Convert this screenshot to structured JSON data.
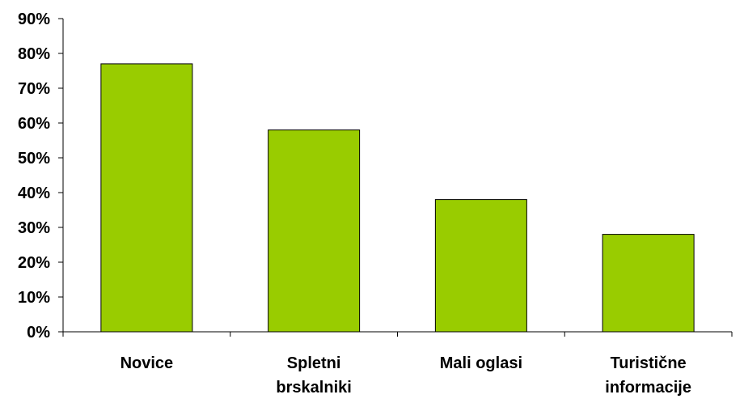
{
  "chart_data": {
    "type": "bar",
    "categories": [
      [
        "Novice"
      ],
      [
        "Spletni",
        "brskalniki"
      ],
      [
        "Mali oglasi"
      ],
      [
        "Turistične",
        "informacije"
      ]
    ],
    "values": [
      0.77,
      0.58,
      0.38,
      0.28
    ],
    "y_ticks": [
      "0%",
      "10%",
      "20%",
      "30%",
      "40%",
      "50%",
      "60%",
      "70%",
      "80%",
      "90%"
    ],
    "ylim": [
      0,
      0.9
    ],
    "title": "",
    "xlabel": "",
    "ylabel": "",
    "grid": false,
    "legend": "none",
    "colors": {
      "bar_fill": "#99CC00",
      "bar_stroke": "#000000",
      "axis": "#000000",
      "text": "#000000"
    }
  }
}
